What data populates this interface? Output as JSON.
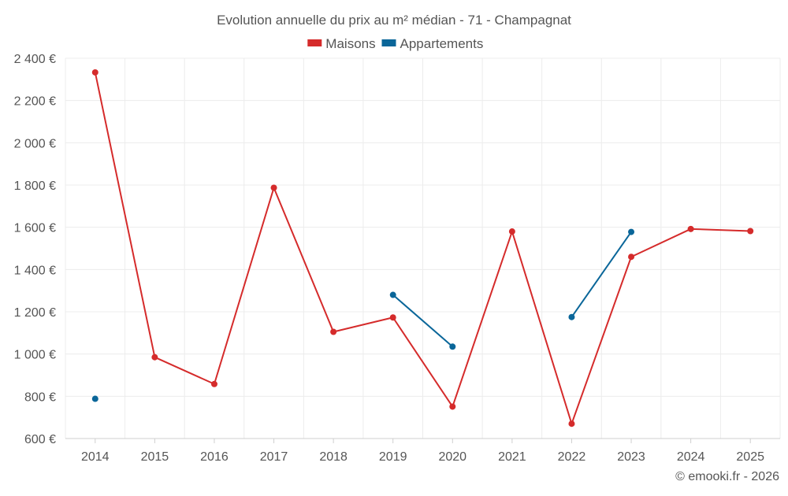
{
  "chart_data": {
    "type": "line",
    "title": "Evolution annuelle du prix au m² médian - 71 - Champagnat",
    "categories": [
      "2014",
      "2015",
      "2016",
      "2017",
      "2018",
      "2019",
      "2020",
      "2021",
      "2022",
      "2023",
      "2024",
      "2025"
    ],
    "ylim": [
      600,
      2400
    ],
    "y_ticks": [
      600,
      800,
      1000,
      1200,
      1400,
      1600,
      1800,
      2000,
      2200,
      2400
    ],
    "y_tick_labels": [
      "600 €",
      "800 €",
      "1 000 €",
      "1 200 €",
      "1 400 €",
      "1 600 €",
      "1 800 €",
      "2 000 €",
      "2 200 €",
      "2 400 €"
    ],
    "grid": true,
    "legend_position": "top-center",
    "series": [
      {
        "name": "Maisons",
        "color": "#d52b2b",
        "values": [
          2333,
          985,
          858,
          1787,
          1105,
          1173,
          751,
          1580,
          670,
          1460,
          1592,
          1582
        ]
      },
      {
        "name": "Appartements",
        "color": "#0a6699",
        "values": [
          788,
          null,
          null,
          null,
          null,
          1280,
          1035,
          null,
          1175,
          1578,
          null,
          null
        ]
      }
    ]
  },
  "credit": "© emooki.fr - 2026"
}
